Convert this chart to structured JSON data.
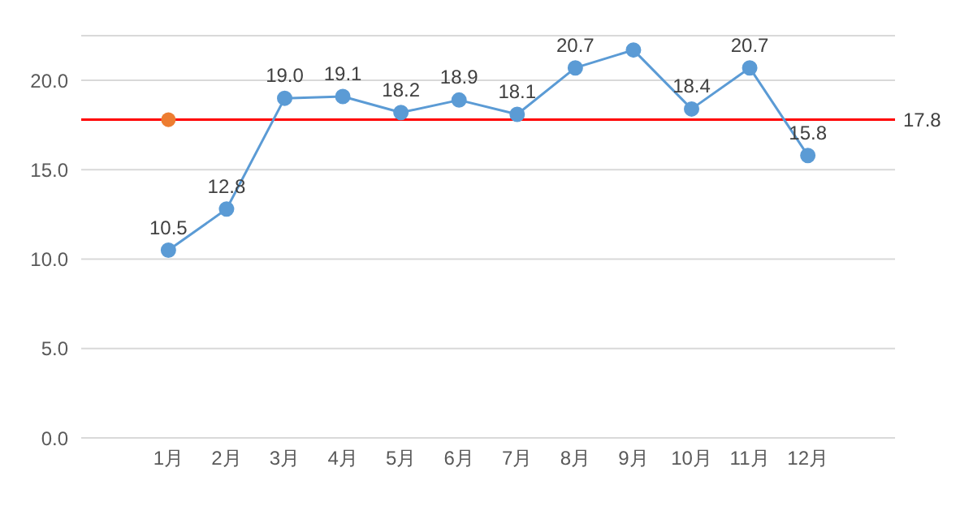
{
  "chart_data": {
    "type": "line",
    "categories": [
      "1月",
      "2月",
      "3月",
      "4月",
      "5月",
      "6月",
      "7月",
      "8月",
      "9月",
      "10月",
      "11月",
      "12月"
    ],
    "series": [
      {
        "color": "#5b9bd5",
        "values": [
          10.5,
          12.8,
          19.0,
          19.1,
          18.2,
          18.9,
          18.1,
          20.7,
          21.7,
          18.4,
          20.7,
          15.8
        ],
        "value_labels": [
          "10.5",
          "12.8",
          "19.0",
          "19.1",
          "18.2",
          "18.9",
          "18.1",
          "20.7",
          null,
          "18.4",
          "20.7",
          "15.8"
        ]
      },
      {
        "type": "scatter",
        "color": "#ed7d31",
        "values": [
          17.8,
          null,
          null,
          null,
          null,
          null,
          null,
          null,
          null,
          null,
          null,
          null
        ]
      }
    ],
    "ref_lines": [
      {
        "axis": "y",
        "value": 17.8,
        "label": "17.8",
        "color": "#ff0000"
      }
    ],
    "ylim": [
      0,
      22.5
    ],
    "yticks": [
      {
        "value": 0,
        "label": "0.0"
      },
      {
        "value": 5,
        "label": "5.0"
      },
      {
        "value": 10,
        "label": "10.0"
      },
      {
        "value": 15,
        "label": "15.0"
      },
      {
        "value": 20,
        "label": "20.0"
      }
    ],
    "grid": "y",
    "marker": "circle"
  }
}
